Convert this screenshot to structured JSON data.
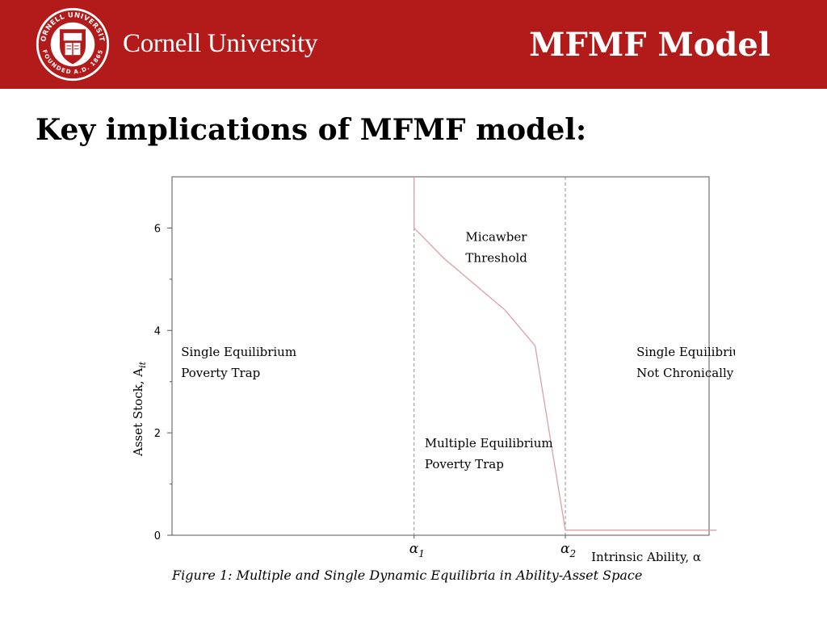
{
  "header": {
    "university": "Cornell University",
    "model_title": "MFMF Model",
    "seal_ring_text": "CORNELL UNIVERSITY",
    "seal_founded_text": "FOUNDED A.D. 1865"
  },
  "page": {
    "title": "Key implications of MFMF model:"
  },
  "figure": {
    "caption": "Figure 1: Multiple and Single Dynamic Equilibria in Ability-Asset Space"
  },
  "colors": {
    "brand_red": "#b31b1b",
    "threshold_line": "#d9a0a8"
  },
  "chart_data": {
    "type": "line",
    "ylabel": "Asset Stock, A",
    "ylabel_subscript": "it",
    "xlabel": "Intrinsic Ability, α",
    "ylim": [
      0,
      7
    ],
    "yticks": [
      0,
      2,
      4,
      6
    ],
    "xticks": [
      {
        "label": "α",
        "sub": "1",
        "x": 1
      },
      {
        "label": "α",
        "sub": "2",
        "x": 2
      }
    ],
    "xlim": [
      -0.6,
      2.95
    ],
    "grid": false,
    "vlines": [
      1,
      2
    ],
    "series": [
      {
        "x": [
          1.0,
          1.0,
          1.2,
          1.6,
          1.8,
          2.0,
          3.0,
          2.85
        ],
        "y": [
          7.0,
          6.0,
          5.4,
          4.4,
          3.7,
          0.1,
          0.1,
          0.1
        ]
      }
    ],
    "annotations": [
      {
        "lines": [
          "Micawber",
          "Threshold"
        ],
        "x": 1.34,
        "y": 5.75
      },
      {
        "lines": [
          "Single Equilibrium",
          "Poverty Trap"
        ],
        "x": -0.54,
        "y": 3.5
      },
      {
        "lines": [
          "Multiple Equilibrium",
          "Poverty Trap"
        ],
        "x": 1.07,
        "y": 1.72
      },
      {
        "lines": [
          "Single Equilibrium,",
          "Not Chronically Poor"
        ],
        "x": 2.47,
        "y": 3.5
      }
    ]
  }
}
